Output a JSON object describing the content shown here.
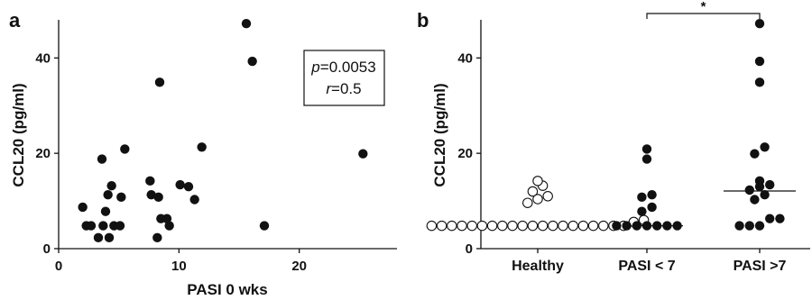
{
  "chart_data": [
    {
      "panel": "a",
      "type": "scatter",
      "xlabel": "PASI 0 wks",
      "ylabel": "CCL20 (pg/ml)",
      "xlim": [
        0,
        30
      ],
      "ylim": [
        0,
        48
      ],
      "xticks": [
        0,
        10,
        20
      ],
      "yticks": [
        0,
        20,
        40
      ],
      "annotation": {
        "p_symbol": "p",
        "p_value": "=0.0053",
        "r_symbol": "r",
        "r_value": "=0.5"
      },
      "points": [
        {
          "x": 2.0,
          "y": 8.7
        },
        {
          "x": 2.3,
          "y": 4.8
        },
        {
          "x": 2.7,
          "y": 4.8
        },
        {
          "x": 3.3,
          "y": 2.3
        },
        {
          "x": 3.6,
          "y": 18.8
        },
        {
          "x": 3.7,
          "y": 4.8
        },
        {
          "x": 3.9,
          "y": 7.8
        },
        {
          "x": 4.1,
          "y": 11.3
        },
        {
          "x": 4.2,
          "y": 2.3
        },
        {
          "x": 4.4,
          "y": 13.2
        },
        {
          "x": 4.6,
          "y": 4.8
        },
        {
          "x": 5.1,
          "y": 4.8
        },
        {
          "x": 5.2,
          "y": 10.8
        },
        {
          "x": 5.5,
          "y": 20.9
        },
        {
          "x": 7.6,
          "y": 14.2
        },
        {
          "x": 7.7,
          "y": 11.3
        },
        {
          "x": 8.3,
          "y": 10.8
        },
        {
          "x": 8.2,
          "y": 2.3
        },
        {
          "x": 8.4,
          "y": 34.9
        },
        {
          "x": 8.5,
          "y": 6.3
        },
        {
          "x": 9.0,
          "y": 6.3
        },
        {
          "x": 9.2,
          "y": 4.8
        },
        {
          "x": 10.1,
          "y": 13.4
        },
        {
          "x": 10.8,
          "y": 13.0
        },
        {
          "x": 11.3,
          "y": 10.3
        },
        {
          "x": 11.9,
          "y": 21.3
        },
        {
          "x": 15.6,
          "y": 47.2
        },
        {
          "x": 16.1,
          "y": 39.3
        },
        {
          "x": 17.1,
          "y": 4.8
        },
        {
          "x": 25.3,
          "y": 19.9
        }
      ]
    },
    {
      "panel": "b",
      "type": "scatter",
      "ylabel": "CCL20 (pg/ml)",
      "ylim": [
        0,
        48
      ],
      "yticks": [
        0,
        20,
        40
      ],
      "categories": [
        "Healthy",
        "PASI < 7",
        "PASI >7"
      ],
      "significance": {
        "from": "PASI < 7",
        "to": "PASI >7",
        "label": "*"
      },
      "groups": [
        {
          "category": "Healthy",
          "marker": "open",
          "median": 4.8,
          "values": [
            14.2,
            13.2,
            12.0,
            11.0,
            10.4,
            9.6,
            6.0,
            5.6,
            4.8,
            4.8,
            4.8,
            4.8,
            4.8,
            4.8,
            4.8,
            4.8,
            4.8,
            4.8,
            4.8,
            4.8,
            4.8,
            4.8,
            4.8,
            4.8,
            4.8,
            4.8,
            4.8,
            4.8
          ]
        },
        {
          "category": "PASI < 7",
          "marker": "filled",
          "median": 4.8,
          "values": [
            20.9,
            18.8,
            11.3,
            10.8,
            8.7,
            7.8,
            4.8,
            4.8,
            4.8,
            4.8,
            4.8,
            4.8,
            4.8
          ]
        },
        {
          "category": "PASI >7",
          "marker": "filled",
          "median": 12.1,
          "values": [
            47.2,
            39.3,
            34.9,
            21.3,
            19.9,
            14.2,
            13.4,
            13.0,
            12.3,
            11.3,
            10.3,
            6.3,
            6.3,
            4.8,
            4.8,
            4.8
          ]
        }
      ]
    }
  ]
}
